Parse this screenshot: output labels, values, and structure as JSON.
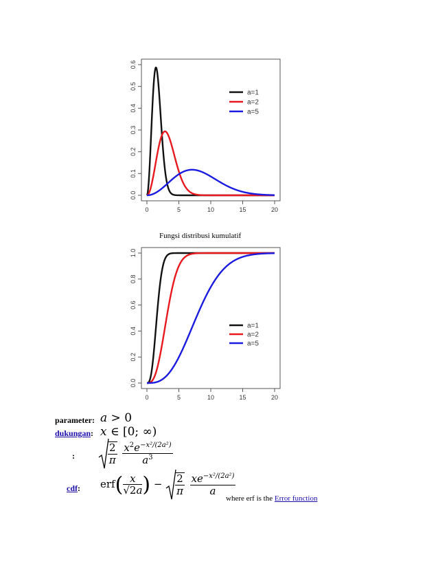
{
  "chart_data": [
    {
      "type": "line",
      "xlim": [
        0,
        20
      ],
      "ylim": [
        0,
        0.6
      ],
      "x_ticks": [
        "0",
        "5",
        "10",
        "15",
        "20"
      ],
      "y_ticks": [
        "0.0",
        "0.1",
        "0.2",
        "0.3",
        "0.4",
        "0.5",
        "0.6"
      ],
      "grid": false,
      "legend_position": "top-right",
      "function": "pdf",
      "series": [
        {
          "name": "a=1",
          "a": 1,
          "color": "#111111"
        },
        {
          "name": "a=2",
          "a": 2,
          "color": "#e8191e"
        },
        {
          "name": "a=5",
          "a": 5,
          "color": "#1b1be0"
        }
      ]
    },
    {
      "type": "line",
      "xlim": [
        0,
        20
      ],
      "ylim": [
        0,
        1.0
      ],
      "x_ticks": [
        "0",
        "5",
        "10",
        "15",
        "20"
      ],
      "y_ticks": [
        "0.0",
        "0.2",
        "0.4",
        "0.6",
        "0.8",
        "1.0"
      ],
      "grid": false,
      "legend_position": "bottom-right",
      "function": "cdf",
      "series": [
        {
          "name": "a=1",
          "a": 1,
          "color": "#111111"
        },
        {
          "name": "a=2",
          "a": 2,
          "color": "#e8191e"
        },
        {
          "name": "a=5",
          "a": 5,
          "color": "#1b1be0"
        }
      ]
    }
  ],
  "caption": "Fungsi distribusi kumulatif",
  "params": {
    "parameter_label": "parameter:",
    "support_label": "dukungan",
    "support_colon": ":",
    "pdf_label": ":",
    "cdf_label": "cdf",
    "cdf_colon": ":",
    "where_text": "where erf is the ",
    "error_function_link": "Error function"
  }
}
